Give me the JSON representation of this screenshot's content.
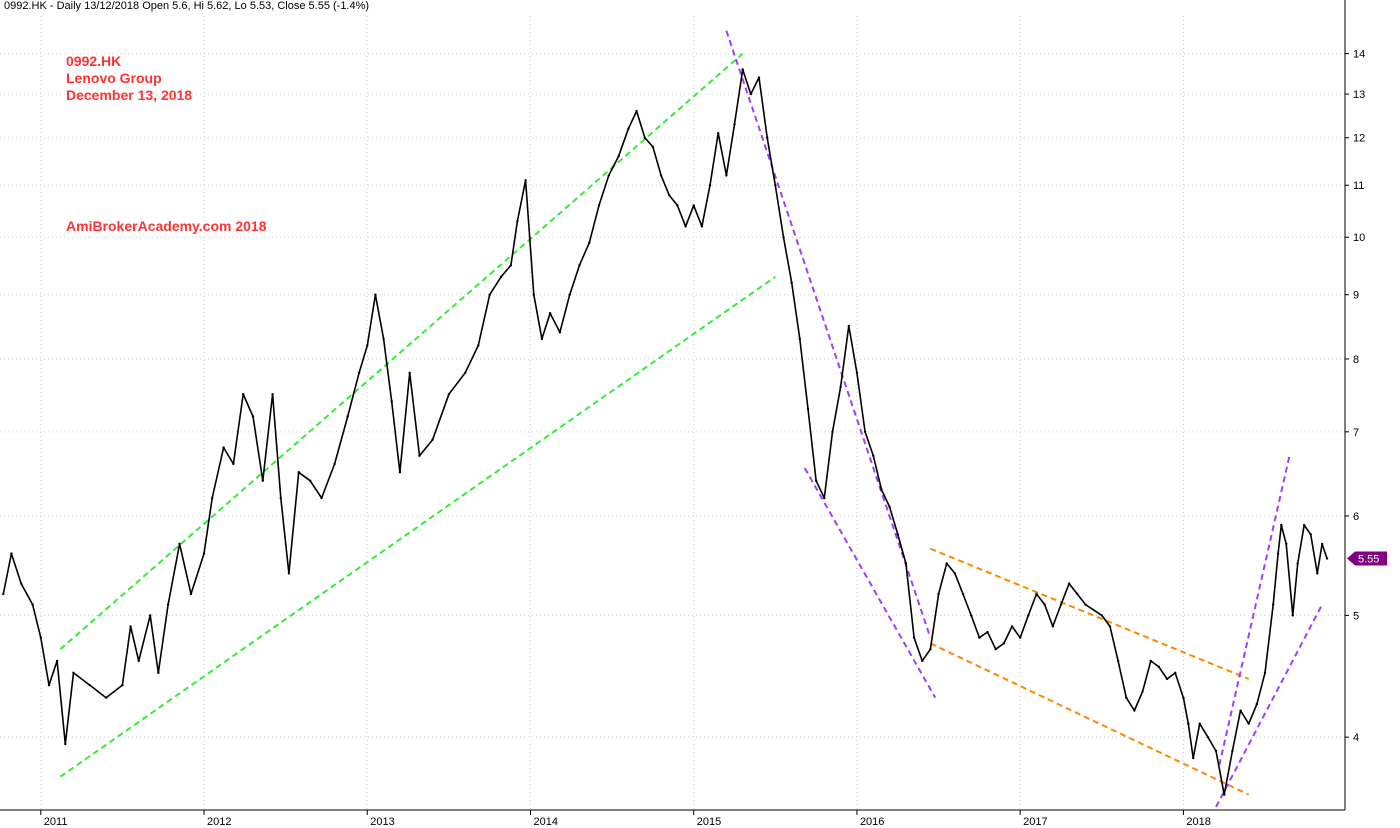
{
  "header": {
    "text": "0992.HK - Daily 13/12/2018 Open 5.6, Hi 5.62, Lo 5.53, Close 5.55 (-1.4%)"
  },
  "annotations": {
    "ticker": "0992.HK",
    "company": "Lenovo Group",
    "date": "December 13, 2018",
    "source": "AmiBrokerAcademy.com  2018"
  },
  "last_price_badge": "5.55",
  "colors": {
    "price": "#000000",
    "green_trendline": "#33ee33",
    "purple_trendline": "#a040ff",
    "orange_trendline": "#ff8800",
    "grid": "#d0d0d0",
    "badge": "#800080",
    "annotation_text": "#ff3333"
  },
  "chart_data": {
    "type": "line",
    "title": "",
    "xlabel": "",
    "ylabel": "",
    "y_scale": "log",
    "ylim": [
      3.5,
      15.0
    ],
    "xlim": [
      2010.75,
      2018.99
    ],
    "grid": true,
    "y_ticks": [
      4,
      5,
      6,
      7,
      8,
      9,
      10,
      11,
      12,
      13,
      14
    ],
    "x_ticks": [
      {
        "value": 2011.0,
        "label": "2011"
      },
      {
        "value": 2012.0,
        "label": "2012"
      },
      {
        "value": 2013.0,
        "label": "2013"
      },
      {
        "value": 2014.0,
        "label": "2014"
      },
      {
        "value": 2015.0,
        "label": "2015"
      },
      {
        "value": 2016.0,
        "label": "2016"
      },
      {
        "value": 2017.0,
        "label": "2017"
      },
      {
        "value": 2018.0,
        "label": "2018"
      }
    ],
    "series": [
      {
        "points": [
          [
            2010.77,
            5.2
          ],
          [
            2010.82,
            5.6
          ],
          [
            2010.88,
            5.3
          ],
          [
            2010.95,
            5.1
          ],
          [
            2011.0,
            4.8
          ],
          [
            2011.05,
            4.4
          ],
          [
            2011.1,
            4.6
          ],
          [
            2011.15,
            3.95
          ],
          [
            2011.2,
            4.5
          ],
          [
            2011.3,
            4.4
          ],
          [
            2011.4,
            4.3
          ],
          [
            2011.5,
            4.4
          ],
          [
            2011.55,
            4.9
          ],
          [
            2011.6,
            4.6
          ],
          [
            2011.67,
            5.0
          ],
          [
            2011.72,
            4.5
          ],
          [
            2011.78,
            5.1
          ],
          [
            2011.85,
            5.7
          ],
          [
            2011.92,
            5.2
          ],
          [
            2012.0,
            5.6
          ],
          [
            2012.05,
            6.2
          ],
          [
            2012.12,
            6.8
          ],
          [
            2012.18,
            6.6
          ],
          [
            2012.24,
            7.5
          ],
          [
            2012.3,
            7.2
          ],
          [
            2012.36,
            6.4
          ],
          [
            2012.42,
            7.5
          ],
          [
            2012.47,
            6.2
          ],
          [
            2012.52,
            5.4
          ],
          [
            2012.58,
            6.5
          ],
          [
            2012.65,
            6.4
          ],
          [
            2012.72,
            6.2
          ],
          [
            2012.8,
            6.6
          ],
          [
            2012.88,
            7.2
          ],
          [
            2012.95,
            7.8
          ],
          [
            2013.0,
            8.2
          ],
          [
            2013.05,
            9.0
          ],
          [
            2013.1,
            8.3
          ],
          [
            2013.15,
            7.4
          ],
          [
            2013.2,
            6.5
          ],
          [
            2013.26,
            7.8
          ],
          [
            2013.32,
            6.7
          ],
          [
            2013.4,
            6.9
          ],
          [
            2013.5,
            7.5
          ],
          [
            2013.6,
            7.8
          ],
          [
            2013.68,
            8.2
          ],
          [
            2013.75,
            9.0
          ],
          [
            2013.82,
            9.3
          ],
          [
            2013.88,
            9.5
          ],
          [
            2013.92,
            10.3
          ],
          [
            2013.97,
            11.1
          ],
          [
            2014.02,
            9.0
          ],
          [
            2014.07,
            8.3
          ],
          [
            2014.12,
            8.7
          ],
          [
            2014.18,
            8.4
          ],
          [
            2014.24,
            9.0
          ],
          [
            2014.3,
            9.5
          ],
          [
            2014.36,
            9.9
          ],
          [
            2014.42,
            10.6
          ],
          [
            2014.48,
            11.2
          ],
          [
            2014.54,
            11.6
          ],
          [
            2014.6,
            12.2
          ],
          [
            2014.65,
            12.6
          ],
          [
            2014.7,
            12.0
          ],
          [
            2014.75,
            11.8
          ],
          [
            2014.8,
            11.2
          ],
          [
            2014.85,
            10.8
          ],
          [
            2014.9,
            10.6
          ],
          [
            2014.95,
            10.2
          ],
          [
            2015.0,
            10.6
          ],
          [
            2015.05,
            10.2
          ],
          [
            2015.1,
            11.0
          ],
          [
            2015.15,
            12.1
          ],
          [
            2015.2,
            11.2
          ],
          [
            2015.25,
            12.3
          ],
          [
            2015.3,
            13.6
          ],
          [
            2015.35,
            13.0
          ],
          [
            2015.4,
            13.4
          ],
          [
            2015.45,
            12.0
          ],
          [
            2015.5,
            11.0
          ],
          [
            2015.55,
            10.0
          ],
          [
            2015.6,
            9.2
          ],
          [
            2015.65,
            8.3
          ],
          [
            2015.7,
            7.3
          ],
          [
            2015.75,
            6.4
          ],
          [
            2015.8,
            6.2
          ],
          [
            2015.85,
            7.0
          ],
          [
            2015.9,
            7.6
          ],
          [
            2015.95,
            8.5
          ],
          [
            2016.0,
            7.8
          ],
          [
            2016.05,
            7.0
          ],
          [
            2016.1,
            6.7
          ],
          [
            2016.15,
            6.3
          ],
          [
            2016.2,
            6.1
          ],
          [
            2016.25,
            5.8
          ],
          [
            2016.3,
            5.5
          ],
          [
            2016.35,
            4.8
          ],
          [
            2016.4,
            4.6
          ],
          [
            2016.45,
            4.7
          ],
          [
            2016.5,
            5.2
          ],
          [
            2016.55,
            5.5
          ],
          [
            2016.6,
            5.4
          ],
          [
            2016.65,
            5.2
          ],
          [
            2016.7,
            5.0
          ],
          [
            2016.75,
            4.8
          ],
          [
            2016.8,
            4.85
          ],
          [
            2016.85,
            4.7
          ],
          [
            2016.9,
            4.75
          ],
          [
            2016.95,
            4.9
          ],
          [
            2017.0,
            4.8
          ],
          [
            2017.05,
            5.0
          ],
          [
            2017.1,
            5.2
          ],
          [
            2017.15,
            5.1
          ],
          [
            2017.2,
            4.9
          ],
          [
            2017.25,
            5.1
          ],
          [
            2017.3,
            5.3
          ],
          [
            2017.35,
            5.2
          ],
          [
            2017.4,
            5.1
          ],
          [
            2017.5,
            5.0
          ],
          [
            2017.55,
            4.9
          ],
          [
            2017.6,
            4.6
          ],
          [
            2017.65,
            4.3
          ],
          [
            2017.7,
            4.2
          ],
          [
            2017.75,
            4.35
          ],
          [
            2017.8,
            4.6
          ],
          [
            2017.85,
            4.55
          ],
          [
            2017.9,
            4.45
          ],
          [
            2017.95,
            4.5
          ],
          [
            2018.0,
            4.3
          ],
          [
            2018.03,
            4.1
          ],
          [
            2018.06,
            3.85
          ],
          [
            2018.1,
            4.1
          ],
          [
            2018.15,
            4.0
          ],
          [
            2018.2,
            3.9
          ],
          [
            2018.25,
            3.6
          ],
          [
            2018.3,
            3.9
          ],
          [
            2018.35,
            4.2
          ],
          [
            2018.4,
            4.1
          ],
          [
            2018.45,
            4.25
          ],
          [
            2018.5,
            4.5
          ],
          [
            2018.55,
            5.1
          ],
          [
            2018.58,
            5.6
          ],
          [
            2018.6,
            5.9
          ],
          [
            2018.63,
            5.7
          ],
          [
            2018.67,
            5.0
          ],
          [
            2018.7,
            5.5
          ],
          [
            2018.74,
            5.9
          ],
          [
            2018.78,
            5.8
          ],
          [
            2018.82,
            5.4
          ],
          [
            2018.85,
            5.7
          ],
          [
            2018.88,
            5.55
          ]
        ]
      }
    ],
    "trendlines": [
      {
        "color_key": "green_trendline",
        "from": [
          2011.12,
          4.7
        ],
        "to": [
          2015.3,
          14.0
        ]
      },
      {
        "color_key": "green_trendline",
        "from": [
          2011.12,
          3.72
        ],
        "to": [
          2015.5,
          9.3
        ]
      },
      {
        "color_key": "purple_trendline",
        "from": [
          2015.2,
          14.6
        ],
        "to": [
          2016.45,
          4.8
        ]
      },
      {
        "color_key": "purple_trendline",
        "from": [
          2015.68,
          6.55
        ],
        "to": [
          2016.48,
          4.3
        ]
      },
      {
        "color_key": "orange_trendline",
        "from": [
          2016.45,
          5.65
        ],
        "to": [
          2018.4,
          4.45
        ]
      },
      {
        "color_key": "orange_trendline",
        "from": [
          2016.45,
          4.75
        ],
        "to": [
          2018.4,
          3.6
        ]
      },
      {
        "color_key": "purple_trendline",
        "from": [
          2018.2,
          3.52
        ],
        "to": [
          2018.85,
          5.1
        ]
      },
      {
        "color_key": "purple_trendline",
        "from": [
          2018.22,
          3.8
        ],
        "to": [
          2018.65,
          6.7
        ]
      }
    ]
  }
}
